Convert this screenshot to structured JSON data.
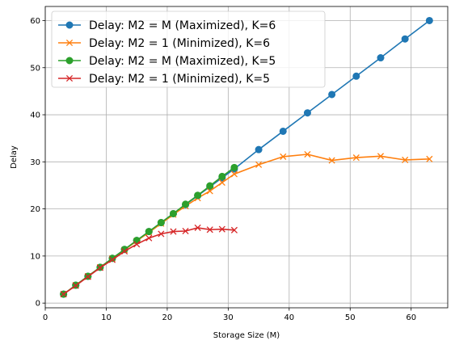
{
  "chart_data": {
    "type": "line",
    "title": "",
    "xlabel": "Storage Size (M)",
    "ylabel": "Delay",
    "xlim": [
      0,
      66
    ],
    "ylim": [
      -1,
      63
    ],
    "xticks": [
      0,
      10,
      20,
      30,
      40,
      50,
      60
    ],
    "yticks": [
      0,
      10,
      20,
      30,
      40,
      50,
      60
    ],
    "grid": true,
    "legend_position": "top-left",
    "series": [
      {
        "name": "Delay: M2 = M (Maximized), K=6",
        "color": "#1f77b4",
        "marker": "circle",
        "x": [
          3,
          5,
          7,
          9,
          11,
          13,
          15,
          17,
          19,
          21,
          23,
          25,
          27,
          29,
          31,
          35,
          39,
          43,
          47,
          51,
          55,
          59,
          63
        ],
        "y": [
          1.9,
          3.8,
          5.7,
          7.6,
          9.5,
          11.4,
          13.3,
          15.2,
          17.1,
          19.0,
          20.9,
          22.8,
          24.7,
          26.6,
          28.5,
          32.6,
          36.5,
          40.4,
          44.3,
          48.2,
          52.1,
          56.1,
          60.0
        ]
      },
      {
        "name": "Delay: M2 = 1 (Minimized), K=6",
        "color": "#ff7f0e",
        "marker": "x",
        "x": [
          3,
          5,
          7,
          9,
          11,
          13,
          15,
          17,
          19,
          21,
          23,
          25,
          27,
          29,
          31,
          35,
          39,
          43,
          47,
          51,
          55,
          59,
          63
        ],
        "y": [
          1.9,
          3.8,
          5.7,
          7.6,
          9.5,
          11.3,
          13.2,
          15.0,
          16.9,
          18.8,
          20.6,
          22.3,
          23.8,
          25.6,
          27.4,
          29.4,
          31.1,
          31.6,
          30.3,
          30.9,
          31.2,
          30.4,
          30.6
        ]
      },
      {
        "name": "Delay: M2 = M (Maximized), K=5",
        "color": "#2ca02c",
        "marker": "circle",
        "x": [
          3,
          5,
          7,
          9,
          11,
          13,
          15,
          17,
          19,
          21,
          23,
          25,
          27,
          29,
          31
        ],
        "y": [
          1.9,
          3.8,
          5.7,
          7.6,
          9.5,
          11.4,
          13.3,
          15.2,
          17.1,
          19.0,
          21.0,
          22.9,
          24.9,
          26.9,
          28.8
        ]
      },
      {
        "name": "Delay: M2 = 1 (Minimized), K=5",
        "color": "#d62728",
        "marker": "x",
        "x": [
          3,
          5,
          7,
          9,
          11,
          13,
          15,
          17,
          19,
          21,
          23,
          25,
          27,
          29,
          31
        ],
        "y": [
          1.9,
          3.7,
          5.6,
          7.5,
          9.2,
          11.0,
          12.5,
          13.8,
          14.7,
          15.2,
          15.3,
          16.0,
          15.6,
          15.7,
          15.5
        ]
      }
    ]
  }
}
